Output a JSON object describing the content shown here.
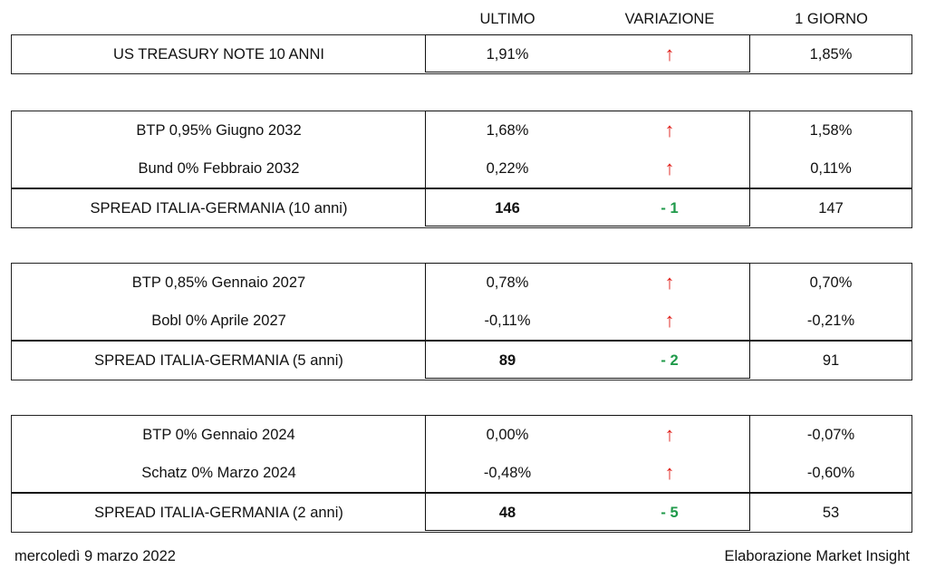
{
  "headers": {
    "ultimo": "ULTIMO",
    "variazione": "VARIAZIONE",
    "giorno": "1 GIORNO"
  },
  "colors": {
    "up_arrow": "#e0201b",
    "negative_change": "#1f9a4a"
  },
  "treasury": {
    "name": "US TREASURY NOTE 10 ANNI",
    "ultimo": "1,91%",
    "variazione_icon": "up-arrow-icon",
    "variazione_glyph": "🡑",
    "giorno": "1,85%"
  },
  "block_10y": {
    "rows": [
      {
        "name": "BTP 0,95% Giugno 2032",
        "ultimo": "1,68%",
        "variazione_icon": "up-arrow-icon",
        "giorno": "1,58%"
      },
      {
        "name": "Bund 0% Febbraio 2032",
        "ultimo": "0,22%",
        "variazione_icon": "up-arrow-icon",
        "giorno": "0,11%"
      }
    ],
    "spread": {
      "name": "SPREAD ITALIA-GERMANIA (10 anni)",
      "ultimo": "146",
      "variazione": "- 1",
      "giorno": "147"
    }
  },
  "block_5y": {
    "rows": [
      {
        "name": "BTP 0,85% Gennaio 2027",
        "ultimo": "0,78%",
        "variazione_icon": "up-arrow-icon",
        "giorno": "0,70%"
      },
      {
        "name": "Bobl 0% Aprile 2027",
        "ultimo": "-0,11%",
        "variazione_icon": "up-arrow-icon",
        "giorno": "-0,21%"
      }
    ],
    "spread": {
      "name": "SPREAD ITALIA-GERMANIA (5 anni)",
      "ultimo": "89",
      "variazione": "- 2",
      "giorno": "91"
    }
  },
  "block_2y": {
    "rows": [
      {
        "name": "BTP 0% Gennaio 2024",
        "ultimo": "0,00%",
        "variazione_icon": "up-arrow-icon",
        "giorno": "-0,07%"
      },
      {
        "name": "Schatz 0% Marzo 2024",
        "ultimo": "-0,48%",
        "variazione_icon": "up-arrow-icon",
        "giorno": "-0,60%"
      }
    ],
    "spread": {
      "name": "SPREAD ITALIA-GERMANIA (2 anni)",
      "ultimo": "48",
      "variazione": "- 5",
      "giorno": "53"
    }
  },
  "footer": {
    "date": "mercoledì 9 marzo 2022",
    "credit": "Elaborazione Market Insight"
  }
}
